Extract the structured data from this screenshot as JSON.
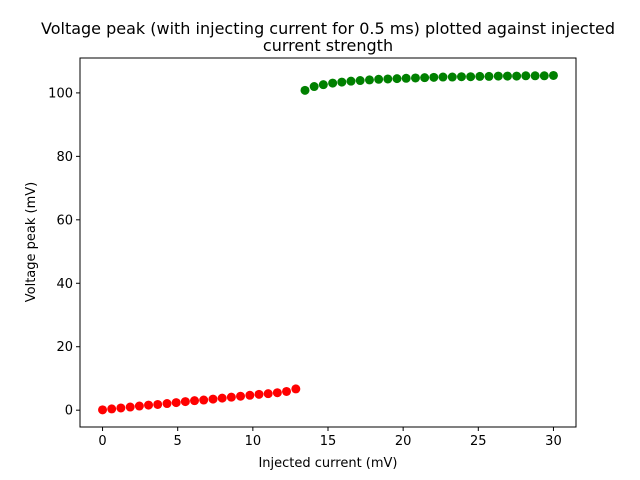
{
  "chart_data": {
    "type": "scatter",
    "title_lines": [
      "Voltage peak (with injecting current for 0.5 ms) plotted against injected",
      "current strength"
    ],
    "xlabel": "Injected current (mV)",
    "ylabel": "Voltage peak (mV)",
    "xlim": [
      -1.5,
      31.5
    ],
    "ylim": [
      -5.3,
      111
    ],
    "xticks": [
      0,
      5,
      10,
      15,
      20,
      25,
      30
    ],
    "yticks": [
      0,
      20,
      40,
      60,
      80,
      100
    ],
    "xtick_labels": [
      "0",
      "5",
      "10",
      "15",
      "20",
      "25",
      "30"
    ],
    "ytick_labels": [
      "0",
      "20",
      "40",
      "60",
      "80",
      "100"
    ],
    "grid": false,
    "series": [
      {
        "color": "#ff0000",
        "x": [
          0.0,
          0.61,
          1.22,
          1.84,
          2.45,
          3.06,
          3.67,
          4.29,
          4.9,
          5.51,
          6.12,
          6.73,
          7.35,
          7.96,
          8.57,
          9.18,
          9.8,
          10.41,
          11.02,
          11.63,
          12.24,
          12.86
        ],
        "y": [
          0.1,
          0.4,
          0.7,
          1.0,
          1.3,
          1.6,
          1.8,
          2.1,
          2.4,
          2.7,
          3.0,
          3.2,
          3.5,
          3.8,
          4.1,
          4.4,
          4.7,
          5.0,
          5.2,
          5.5,
          5.9,
          6.7
        ]
      },
      {
        "color": "#008000",
        "x": [
          13.47,
          14.08,
          14.69,
          15.31,
          15.92,
          16.53,
          17.14,
          17.76,
          18.37,
          18.98,
          19.59,
          20.2,
          20.82,
          21.43,
          22.04,
          22.65,
          23.27,
          23.88,
          24.49,
          25.1,
          25.71,
          26.33,
          26.94,
          27.55,
          28.16,
          28.78,
          29.39,
          30.0
        ],
        "y": [
          100.8,
          102.0,
          102.6,
          103.1,
          103.4,
          103.7,
          103.9,
          104.1,
          104.3,
          104.4,
          104.5,
          104.6,
          104.7,
          104.8,
          104.9,
          105.0,
          105.0,
          105.1,
          105.1,
          105.2,
          105.2,
          105.3,
          105.3,
          105.3,
          105.4,
          105.4,
          105.4,
          105.5
        ]
      }
    ]
  }
}
